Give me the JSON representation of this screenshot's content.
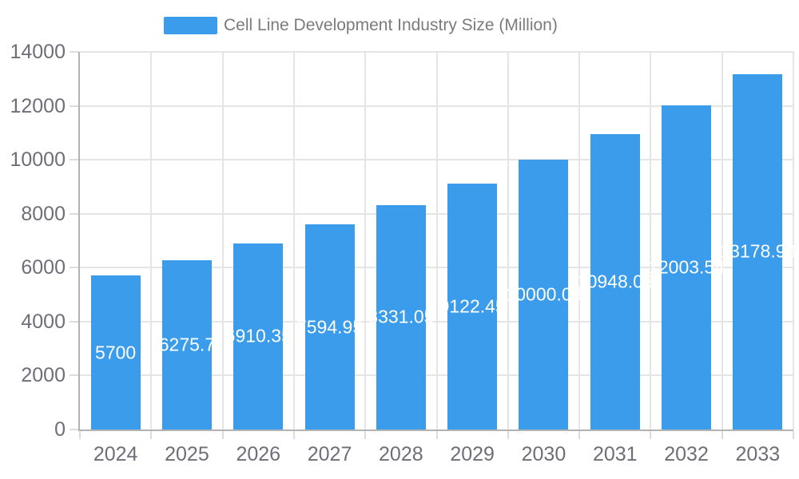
{
  "legend": {
    "label": "Cell Line Development Industry Size (Million)"
  },
  "chart_data": {
    "type": "bar",
    "title": "Cell Line Development Industry Size (Million)",
    "xlabel": "",
    "ylabel": "",
    "categories": [
      "2024",
      "2025",
      "2026",
      "2027",
      "2028",
      "2029",
      "2030",
      "2031",
      "2032",
      "2033"
    ],
    "values": [
      5700,
      6275.7,
      6910.35,
      7594.95,
      8331.05,
      9122.45,
      10000.03,
      10948.03,
      12003.54,
      13178.93
    ],
    "bar_labels": [
      "5700",
      "6275.7",
      "6910.35",
      "7594.95",
      "8331.05",
      "9122.45",
      "10000.03",
      "10948.03",
      "12003.54",
      "13178.93"
    ],
    "ylim": [
      0,
      14000
    ],
    "yticks": [
      0,
      2000,
      4000,
      6000,
      8000,
      10000,
      12000,
      14000
    ],
    "grid": true,
    "legend_position": "top-center",
    "bar_label_position": "inside-middle",
    "colors": {
      "bar": "#3b9ceb",
      "grid": "#e5e5e5",
      "tick": "#dcdcdc",
      "axis_line": "#b3b3b3",
      "axis_label": "#6e6e78",
      "legend_text": "#7b7b7b",
      "bar_label": "#ffffff",
      "background": "#ffffff"
    }
  }
}
